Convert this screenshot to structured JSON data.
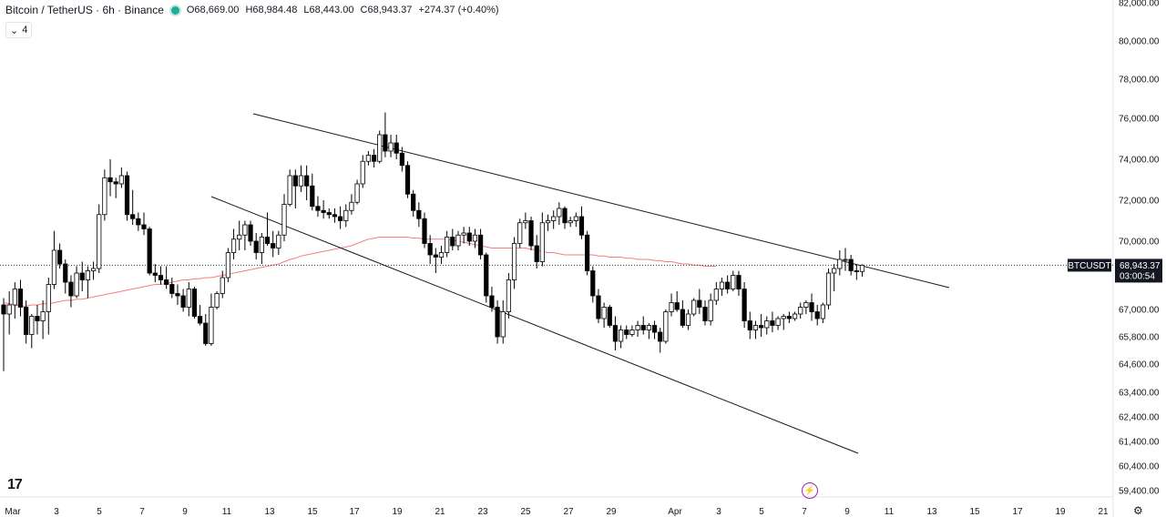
{
  "legend": {
    "symbol": "Bitcoin / TetherUS · 6h · Binance",
    "open": "O68,669.00",
    "high": "H68,984.48",
    "low": "L68,443.00",
    "close": "C68,943.37",
    "change": "+274.37 (+0.40%)",
    "indicator_toggle": "4"
  },
  "price_tag": {
    "ticker": "BTCUSDT",
    "price": "68,943.37",
    "countdown": "03:00:54"
  },
  "colors": {
    "up": "#ffffff",
    "down": "#000000",
    "wick": "#000000",
    "ma": "#f77c80",
    "trendline": "#131722",
    "status_dot": "#22ab94",
    "flash_icon": "#9c27b0"
  },
  "icons": {
    "tv_logo": "tradingview-logo",
    "flash": "lightning-icon",
    "settings": "gear-icon"
  },
  "chart_data": {
    "type": "candlestick",
    "y_ticks": [
      "82,000.00",
      "80,000.00",
      "78,000.00",
      "76,000.00",
      "74,000.00",
      "72,000.00",
      "70,000.00",
      "67,000.00",
      "65,800.00",
      "64,600.00",
      "63,400.00",
      "62,400.00",
      "61,400.00",
      "60,400.00",
      "59,400.00"
    ],
    "x_ticks": [
      "Mar",
      "3",
      "5",
      "7",
      "9",
      "11",
      "13",
      "15",
      "17",
      "19",
      "21",
      "23",
      "25",
      "27",
      "29",
      "Apr",
      "3",
      "5",
      "7",
      "9",
      "11",
      "13",
      "15",
      "17",
      "19",
      "21"
    ],
    "candles": [
      [
        67200,
        67500,
        64300,
        66800
      ],
      [
        66800,
        67800,
        65900,
        67200
      ],
      [
        67200,
        68200,
        66600,
        67900
      ],
      [
        67900,
        68300,
        66700,
        67100
      ],
      [
        67100,
        67400,
        65500,
        65900
      ],
      [
        65900,
        66800,
        65300,
        66700
      ],
      [
        66700,
        67200,
        65900,
        66500
      ],
      [
        66500,
        67400,
        65700,
        66900
      ],
      [
        66900,
        68400,
        65900,
        68100
      ],
      [
        68100,
        70500,
        67900,
        69600
      ],
      [
        69600,
        69900,
        68800,
        69000
      ],
      [
        69000,
        69200,
        67700,
        68200
      ],
      [
        68200,
        68500,
        67100,
        67600
      ],
      [
        67600,
        68900,
        67500,
        68600
      ],
      [
        68600,
        69100,
        67800,
        68300
      ],
      [
        68300,
        68900,
        67500,
        68700
      ],
      [
        68700,
        69100,
        68300,
        68800
      ],
      [
        68800,
        71800,
        68600,
        71300
      ],
      [
        71300,
        73500,
        71000,
        73100
      ],
      [
        73100,
        74000,
        72200,
        72900
      ],
      [
        72900,
        73100,
        72100,
        72800
      ],
      [
        72800,
        73600,
        72600,
        73200
      ],
      [
        73200,
        73400,
        71000,
        71300
      ],
      [
        71300,
        72500,
        70800,
        71100
      ],
      [
        71100,
        71400,
        70500,
        70800
      ],
      [
        70800,
        71400,
        70300,
        70600
      ],
      [
        70600,
        70700,
        68500,
        68600
      ],
      [
        68600,
        69000,
        68200,
        68500
      ],
      [
        68500,
        68900,
        68100,
        68300
      ],
      [
        68300,
        68900,
        67900,
        68100
      ],
      [
        68100,
        68400,
        67500,
        67700
      ],
      [
        67700,
        68100,
        67200,
        67600
      ],
      [
        67600,
        67900,
        66900,
        67100
      ],
      [
        67100,
        68200,
        66700,
        67900
      ],
      [
        67900,
        68000,
        66600,
        66700
      ],
      [
        66700,
        67200,
        66300,
        66400
      ],
      [
        66400,
        66800,
        65400,
        65500
      ],
      [
        65500,
        67700,
        65400,
        67100
      ],
      [
        67100,
        67800,
        67000,
        67700
      ],
      [
        67700,
        68700,
        67500,
        68400
      ],
      [
        68400,
        69700,
        68200,
        69500
      ],
      [
        69500,
        70600,
        69200,
        70100
      ],
      [
        70100,
        71000,
        69600,
        70300
      ],
      [
        70300,
        71000,
        69600,
        70800
      ],
      [
        70800,
        71000,
        69800,
        70000
      ],
      [
        70000,
        70400,
        69200,
        69500
      ],
      [
        69500,
        70400,
        69000,
        70200
      ],
      [
        70200,
        71400,
        69800,
        69900
      ],
      [
        69900,
        70500,
        69300,
        69700
      ],
      [
        69700,
        70500,
        69400,
        70300
      ],
      [
        70300,
        72300,
        70000,
        71800
      ],
      [
        71800,
        73500,
        71700,
        73200
      ],
      [
        73200,
        73500,
        71600,
        72700
      ],
      [
        72700,
        73700,
        72400,
        73200
      ],
      [
        73200,
        73700,
        72000,
        72700
      ],
      [
        72700,
        73300,
        71500,
        71700
      ],
      [
        71700,
        72200,
        71200,
        71500
      ],
      [
        71500,
        72000,
        71100,
        71400
      ],
      [
        71400,
        71600,
        71100,
        71300
      ],
      [
        71300,
        71600,
        70900,
        71200
      ],
      [
        71200,
        71700,
        70600,
        71000
      ],
      [
        71000,
        71800,
        70700,
        71500
      ],
      [
        71500,
        72300,
        71300,
        71900
      ],
      [
        71900,
        73000,
        71800,
        72800
      ],
      [
        72800,
        74200,
        72600,
        73900
      ],
      [
        73900,
        74400,
        73700,
        74200
      ],
      [
        74200,
        74500,
        73600,
        73900
      ],
      [
        73900,
        75400,
        73800,
        75200
      ],
      [
        75200,
        76300,
        74100,
        74400
      ],
      [
        74400,
        75200,
        74100,
        74800
      ],
      [
        74800,
        75200,
        74000,
        74300
      ],
      [
        74300,
        74600,
        73400,
        73700
      ],
      [
        73700,
        73900,
        72100,
        72300
      ],
      [
        72300,
        72500,
        71200,
        71500
      ],
      [
        71500,
        71900,
        70700,
        71100
      ],
      [
        71100,
        71400,
        69700,
        69900
      ],
      [
        69900,
        70300,
        69000,
        69400
      ],
      [
        69400,
        69700,
        68600,
        69300
      ],
      [
        69300,
        69800,
        69000,
        69500
      ],
      [
        69500,
        70500,
        69300,
        70200
      ],
      [
        70200,
        70600,
        69600,
        69800
      ],
      [
        69800,
        70500,
        69600,
        70300
      ],
      [
        70300,
        70700,
        69900,
        70400
      ],
      [
        70400,
        70700,
        69800,
        70000
      ],
      [
        70000,
        70600,
        69700,
        70300
      ],
      [
        70300,
        70600,
        69200,
        69400
      ],
      [
        69400,
        69500,
        67300,
        67600
      ],
      [
        67600,
        68000,
        66900,
        67100
      ],
      [
        67100,
        67400,
        65500,
        65800
      ],
      [
        65800,
        67400,
        65500,
        66900
      ],
      [
        66900,
        68600,
        66600,
        68300
      ],
      [
        68300,
        70200,
        67900,
        69900
      ],
      [
        69900,
        71100,
        69700,
        70900
      ],
      [
        70900,
        71400,
        70600,
        71000
      ],
      [
        71000,
        71200,
        69600,
        69800
      ],
      [
        69800,
        70300,
        68800,
        69100
      ],
      [
        69100,
        71400,
        68900,
        70900
      ],
      [
        70900,
        71300,
        70500,
        71000
      ],
      [
        71000,
        71500,
        70600,
        71200
      ],
      [
        71200,
        71900,
        70800,
        71600
      ],
      [
        71600,
        71700,
        70600,
        70900
      ],
      [
        70900,
        71200,
        70700,
        71000
      ],
      [
        71000,
        71400,
        70700,
        71200
      ],
      [
        71200,
        71700,
        70100,
        70300
      ],
      [
        70300,
        70500,
        68500,
        68700
      ],
      [
        68700,
        68900,
        67300,
        67600
      ],
      [
        67600,
        67900,
        66400,
        66600
      ],
      [
        66600,
        67300,
        66200,
        67100
      ],
      [
        67100,
        67200,
        66200,
        66300
      ],
      [
        66300,
        66700,
        65200,
        65600
      ],
      [
        65600,
        66300,
        65300,
        66100
      ],
      [
        66100,
        66300,
        65700,
        65900
      ],
      [
        65900,
        66300,
        65800,
        66100
      ],
      [
        66100,
        66500,
        65800,
        66300
      ],
      [
        66300,
        66700,
        65900,
        66100
      ],
      [
        66100,
        66400,
        65700,
        66300
      ],
      [
        66300,
        66500,
        65700,
        66000
      ],
      [
        66000,
        66200,
        65100,
        65600
      ],
      [
        65600,
        67000,
        65500,
        66900
      ],
      [
        66900,
        67700,
        66700,
        67300
      ],
      [
        67300,
        67800,
        66900,
        67000
      ],
      [
        67000,
        67400,
        66200,
        66300
      ],
      [
        66300,
        67000,
        66100,
        66800
      ],
      [
        66800,
        67500,
        66700,
        67400
      ],
      [
        67400,
        67900,
        66800,
        67100
      ],
      [
        67100,
        67400,
        66300,
        66500
      ],
      [
        66500,
        67700,
        66300,
        67400
      ],
      [
        67400,
        68200,
        67200,
        67900
      ],
      [
        67900,
        68400,
        67600,
        68200
      ],
      [
        68200,
        68500,
        67700,
        67900
      ],
      [
        67900,
        68700,
        67800,
        68500
      ],
      [
        68500,
        68700,
        67600,
        67900
      ],
      [
        67900,
        68200,
        66200,
        66500
      ],
      [
        66500,
        66900,
        65700,
        66100
      ],
      [
        66100,
        66500,
        65700,
        66300
      ],
      [
        66300,
        66800,
        65800,
        66200
      ],
      [
        66200,
        66700,
        65900,
        66500
      ],
      [
        66500,
        66900,
        66000,
        66300
      ],
      [
        66300,
        66700,
        66100,
        66600
      ],
      [
        66600,
        66800,
        66100,
        66700
      ],
      [
        66700,
        66900,
        66400,
        66600
      ],
      [
        66600,
        66900,
        66500,
        66800
      ],
      [
        66800,
        67300,
        66600,
        67100
      ],
      [
        67100,
        67400,
        66800,
        67300
      ],
      [
        67300,
        67700,
        66500,
        66900
      ],
      [
        66900,
        67200,
        66300,
        66600
      ],
      [
        66600,
        67300,
        66400,
        67200
      ],
      [
        67200,
        68800,
        67000,
        68600
      ],
      [
        68600,
        69000,
        67800,
        68800
      ],
      [
        68800,
        69600,
        68500,
        69200
      ],
      [
        69200,
        69700,
        68700,
        69200
      ],
      [
        69200,
        69400,
        68500,
        68700
      ],
      [
        68700,
        68980,
        68300,
        68670
      ],
      [
        68669,
        68984.48,
        68443,
        68943.37
      ]
    ],
    "ma": [
      67300,
      67250,
      67200,
      67150,
      67150,
      67200,
      67200,
      67250,
      67250,
      67300,
      67350,
      67400,
      67400,
      67450,
      67450,
      67500,
      67550,
      67600,
      67650,
      67700,
      67750,
      67800,
      67850,
      67900,
      67950,
      68000,
      68050,
      68100,
      68100,
      68150,
      68200,
      68250,
      68300,
      68300,
      68350,
      68350,
      68400,
      68400,
      68450,
      68500,
      68550,
      68600,
      68650,
      68700,
      68750,
      68800,
      68850,
      68900,
      68950,
      69000,
      69100,
      69200,
      69250,
      69350,
      69400,
      69450,
      69500,
      69550,
      69600,
      69650,
      69700,
      69750,
      69800,
      69900,
      70000,
      70100,
      70150,
      70200,
      70200,
      70200,
      70200,
      70200,
      70200,
      70150,
      70150,
      70100,
      70100,
      70100,
      70100,
      70100,
      70050,
      70000,
      69950,
      69900,
      69850,
      69800,
      69750,
      69700,
      69700,
      69700,
      69700,
      69700,
      69700,
      69700,
      69650,
      69600,
      69550,
      69500,
      69500,
      69450,
      69400,
      69400,
      69400,
      69400,
      69400,
      69400,
      69350,
      69350,
      69300,
      69300,
      69300,
      69250,
      69250,
      69200,
      69200,
      69200,
      69150,
      69150,
      69100,
      69100,
      69050,
      69000,
      69000,
      68950,
      68950,
      68900,
      68900,
      68900
    ],
    "last_price": 68943.37
  }
}
